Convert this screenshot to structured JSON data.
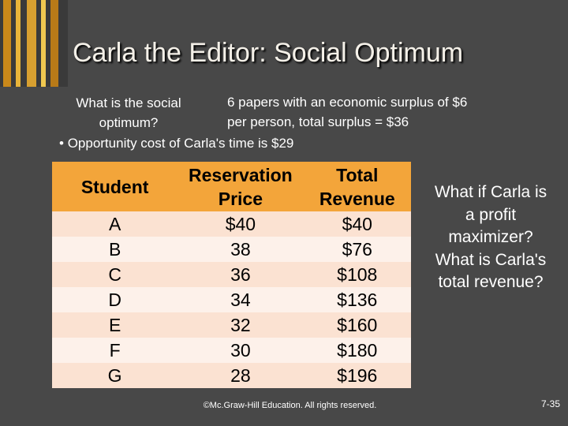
{
  "slide": {
    "title": "Carla the Editor: Social Optimum",
    "question": "What is the social optimum?",
    "answer": "6 papers with an economic surplus of $6 per person, total surplus = $36",
    "bullet": "Opportunity cost of Carla's time is $29",
    "table": {
      "headers": [
        "Student",
        "Reservation Price",
        "Total Revenue"
      ],
      "rows": [
        [
          "A",
          "$40",
          "$40"
        ],
        [
          "B",
          "38",
          "$76"
        ],
        [
          "C",
          "36",
          "$108"
        ],
        [
          "D",
          "34",
          "$136"
        ],
        [
          "E",
          "32",
          "$160"
        ],
        [
          "F",
          "30",
          "$180"
        ],
        [
          "G",
          "28",
          "$196"
        ]
      ]
    },
    "side_question": "What if Carla is a profit maximizer? What is Carla's total revenue?",
    "footer": "©Mc.Graw-Hill Education. All rights reserved.",
    "page_number": "7-35"
  }
}
